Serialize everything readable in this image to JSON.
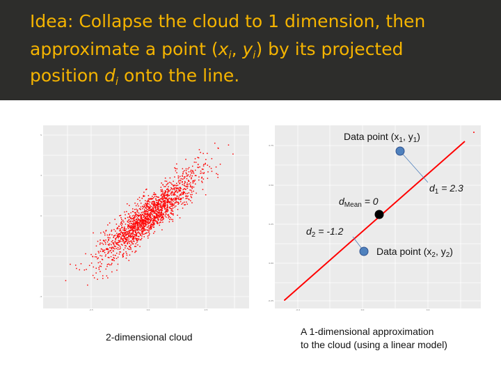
{
  "title": {
    "line1": "Idea: Collapse the cloud to 1 dimension, then",
    "line2_a": "approximate a point (",
    "line2_x": "x",
    "line2_sub_i1": "i",
    "line2_comma": ", ",
    "line2_y": "y",
    "line2_sub_i2": "i",
    "line2_b": ") by its projected",
    "line3_a": "position ",
    "line3_d": "d",
    "line3_sub_i": "i",
    "line3_b": " onto the line."
  },
  "left_panel": {
    "caption": "2-dimensional cloud",
    "point_color": "#ff0000",
    "background_color": "#ebebeb",
    "x_tick_labels": [
      "-2.5",
      "0.0",
      "2.5"
    ],
    "y_tick_labels": [
      "5",
      "3",
      "0",
      "-3"
    ]
  },
  "right_panel": {
    "caption_line1": "A 1-dimensional approximation",
    "caption_line2": "to the cloud (using a linear model)",
    "line_color": "#ff0000",
    "point_color": "#4f81bd",
    "mean_color": "#000000",
    "x_tick_labels": [
      "-0.4",
      "0.0",
      "0.4"
    ],
    "y_tick_labels": [
      "0.75",
      "0.50",
      "0.25",
      "0.00",
      "-0.25"
    ],
    "annotations": {
      "p1_prefix": "Data point (x",
      "p1_sub_x": "1",
      "p1_mid": ", y",
      "p1_sub_y": "1",
      "p1_suffix": ")",
      "d1_d": "d",
      "d1_sub": "1",
      "d1_val": " = 2.3",
      "mean_d": "d",
      "mean_sub": "Mean",
      "mean_val": " = 0",
      "d2_d": "d",
      "d2_sub": "2",
      "d2_val": " = -1.2",
      "p2_prefix": "Data point (x",
      "p2_sub_x": "2",
      "p2_mid": ", y",
      "p2_sub_y": "2",
      "p2_suffix": ")"
    }
  }
}
